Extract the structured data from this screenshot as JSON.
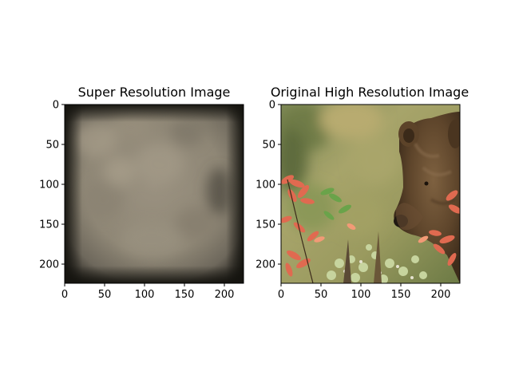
{
  "chart_data": [
    {
      "type": "image",
      "title": "Super Resolution Image",
      "xlim": [
        0,
        224
      ],
      "ylim": [
        224,
        0
      ],
      "xticks": [
        0,
        50,
        100,
        150,
        200
      ],
      "yticks": [
        0,
        50,
        100,
        150,
        200
      ],
      "image_content": "blurry-brown-texture",
      "dominant_color": "#8f8677"
    },
    {
      "type": "image",
      "title": "Original High Resolution Image",
      "xlim": [
        0,
        224
      ],
      "ylim": [
        224,
        0
      ],
      "xticks": [
        0,
        50,
        100,
        150,
        200
      ],
      "yticks": [
        0,
        50,
        100,
        150,
        200
      ],
      "image_content": "brown-bear-among-autumn-plants",
      "dominant_color": "#9a8a5a"
    }
  ]
}
